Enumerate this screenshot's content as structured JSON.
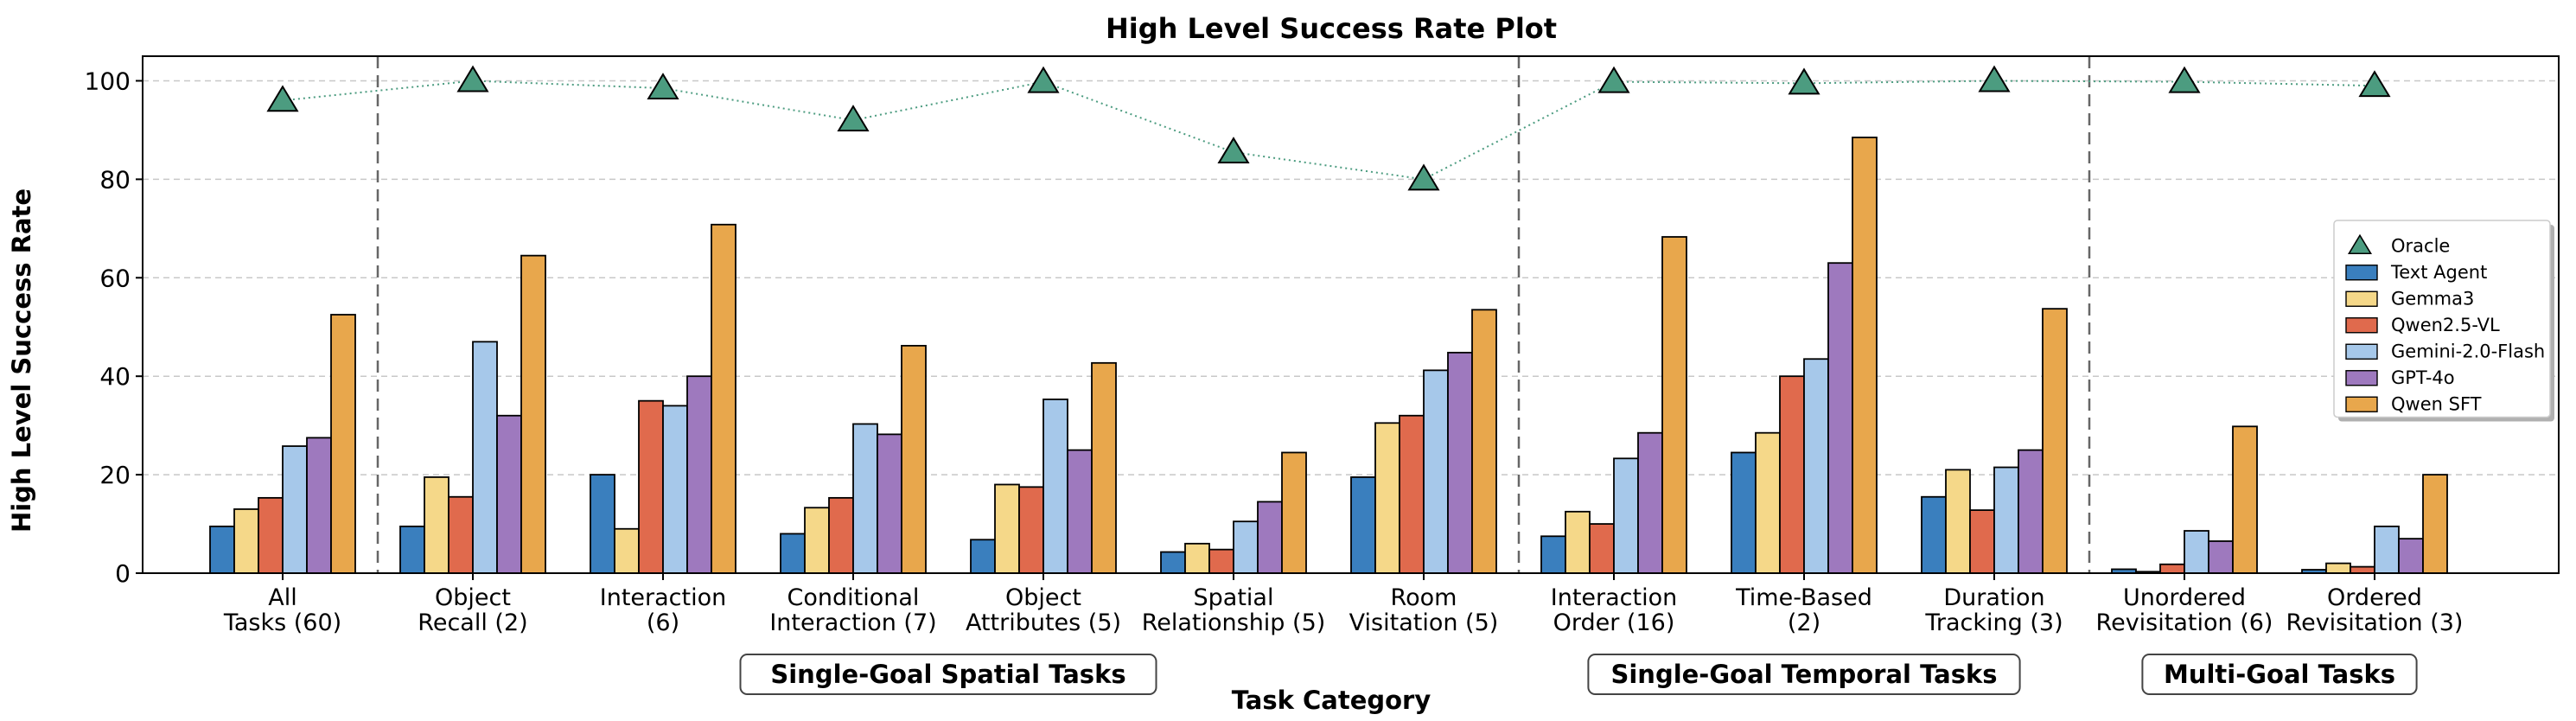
{
  "chart_data": {
    "type": "bar",
    "title": "High Level Success Rate Plot",
    "xlabel": "Task Category",
    "ylabel": "High Level Success Rate",
    "ylim": [
      0,
      105
    ],
    "yticks": [
      0,
      20,
      40,
      60,
      80,
      100
    ],
    "grid": true,
    "legend_position": "right",
    "categories": [
      [
        "All",
        "Tasks (60)"
      ],
      [
        "Object",
        "Recall (2)"
      ],
      [
        "Interaction",
        "(6)"
      ],
      [
        "Conditional",
        "Interaction (7)"
      ],
      [
        "Object",
        "Attributes (5)"
      ],
      [
        "Spatial",
        "Relationship (5)"
      ],
      [
        "Room",
        "Visitation (5)"
      ],
      [
        "Interaction",
        "Order (16)"
      ],
      [
        "Time-Based",
        "(2)"
      ],
      [
        "Duration",
        "Tracking (3)"
      ],
      [
        "Unordered",
        "Revisitation (6)"
      ],
      [
        "Ordered",
        "Revisitation (3)"
      ]
    ],
    "groups": [
      {
        "label": "Single-Goal Spatial Tasks",
        "start": 1,
        "end": 6
      },
      {
        "label": "Single-Goal Temporal Tasks",
        "start": 7,
        "end": 9
      },
      {
        "label": "Multi-Goal Tasks",
        "start": 10,
        "end": 11
      }
    ],
    "separators_after": [
      0,
      6,
      9
    ],
    "series": [
      {
        "name": "Text Agent",
        "color": "#3a7fbe",
        "values": [
          9.5,
          9.5,
          20,
          8,
          6.8,
          4.3,
          19.5,
          7.5,
          24.5,
          15.5,
          0.8,
          0.7
        ]
      },
      {
        "name": "Gemma3",
        "color": "#f5d889",
        "values": [
          13,
          19.5,
          9,
          13.3,
          18,
          6,
          30.5,
          12.5,
          28.5,
          21,
          0.3,
          2
        ]
      },
      {
        "name": "Qwen2.5-VL",
        "color": "#e06a4d",
        "values": [
          15.3,
          15.5,
          35,
          15.3,
          17.5,
          4.8,
          32,
          10,
          40,
          12.8,
          1.8,
          1.3
        ]
      },
      {
        "name": "Gemini-2.0-Flash",
        "color": "#a6c8ea",
        "values": [
          25.8,
          47,
          34,
          30.3,
          35.3,
          10.5,
          41.2,
          23.3,
          43.5,
          21.5,
          8.6,
          9.5
        ]
      },
      {
        "name": "GPT-4o",
        "color": "#9e79be",
        "values": [
          27.5,
          32,
          40,
          28.2,
          25,
          14.5,
          44.8,
          28.5,
          63,
          25,
          6.5,
          7
        ]
      },
      {
        "name": "Qwen SFT",
        "color": "#e8a74c",
        "values": [
          52.5,
          64.5,
          70.8,
          46.2,
          42.7,
          24.5,
          53.5,
          68.3,
          88.5,
          53.7,
          29.8,
          20
        ]
      }
    ],
    "oracle": {
      "name": "Oracle",
      "color": "#4c9c80",
      "values": [
        96,
        100,
        98.5,
        92,
        99.8,
        85.5,
        80,
        99.8,
        99.5,
        100,
        99.8,
        99
      ]
    }
  }
}
